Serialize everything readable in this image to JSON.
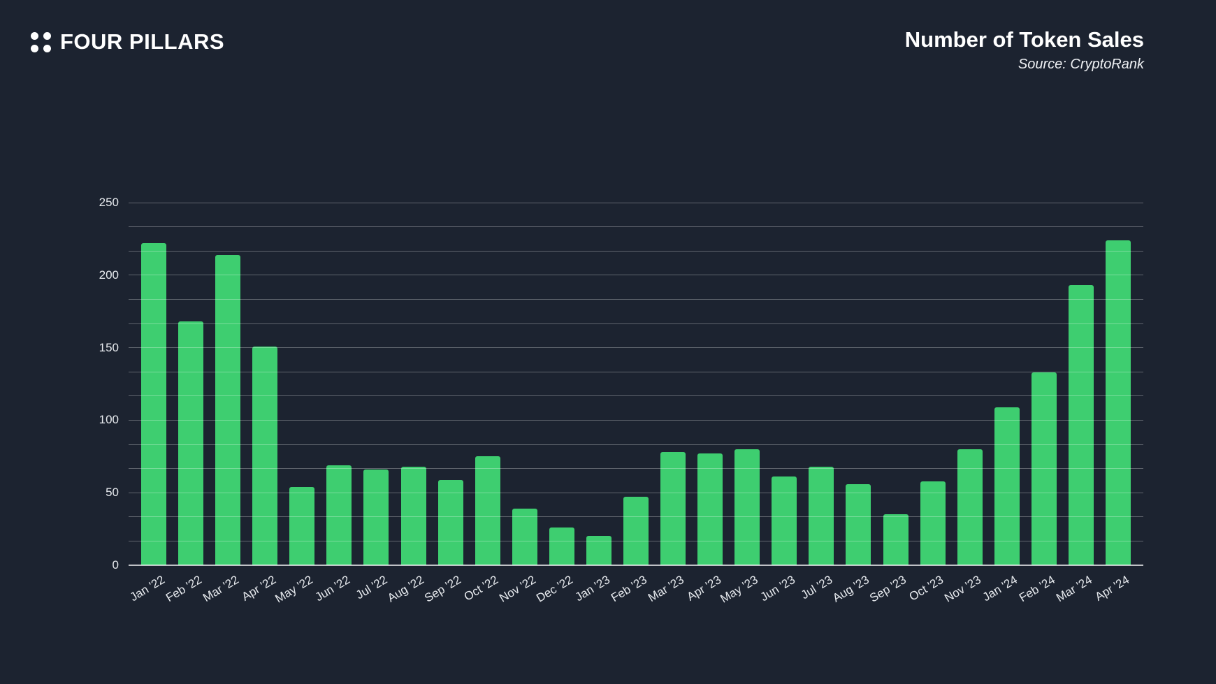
{
  "page": {
    "background": "#1c2330"
  },
  "header": {
    "logo_text": "FOUR PILLARS",
    "title": "Number of Token Sales",
    "source": "Source: CryptoRank"
  },
  "colors": {
    "background": "#1c2330",
    "bar_green": "#3ece70",
    "gridline": "rgba(255,255,255,0.30)",
    "axis_line": "rgba(255,255,255,0.72)",
    "label_text": "#e7eaee",
    "title_text": "#ffffff"
  },
  "chart_data": {
    "type": "bar",
    "title": "Number of Token Sales",
    "source": "CryptoRank",
    "categories": [
      "Jan '22",
      "Feb '22",
      "Mar '22",
      "Apr '22",
      "May '22",
      "Jun '22",
      "Jul '22",
      "Aug '22",
      "Sep '22",
      "Oct '22",
      "Nov '22",
      "Dec '22",
      "Jan '23",
      "Feb '23",
      "Mar '23",
      "Apr '23",
      "May '23",
      "Jun '23",
      "Jul '23",
      "Aug '23",
      "Sep '23",
      "Oct '23",
      "Nov '23",
      "Jan '24",
      "Feb '24",
      "Mar '24",
      "Apr '24"
    ],
    "values": [
      222,
      168,
      214,
      151,
      54,
      69,
      66,
      68,
      59,
      75,
      39,
      26,
      20,
      47,
      78,
      77,
      80,
      61,
      68,
      56,
      35,
      58,
      80,
      109,
      133,
      193,
      224
    ],
    "ylim": [
      0,
      250
    ],
    "yticks": [
      0,
      50,
      100,
      150,
      200,
      250
    ],
    "minor_gridlines_per_tick": 3,
    "grid": true,
    "legend": false,
    "bar_color": "#3ece70"
  }
}
